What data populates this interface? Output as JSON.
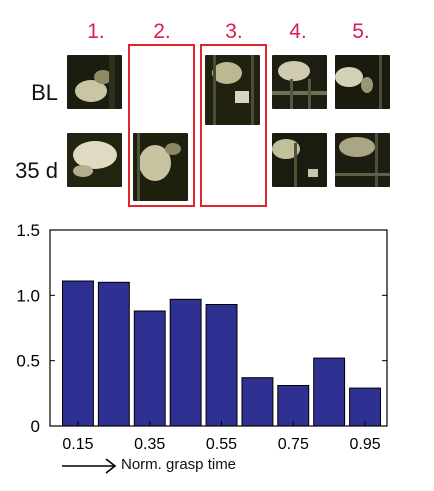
{
  "figure": {
    "steps": [
      "1.",
      "2.",
      "3.",
      "4.",
      "5."
    ],
    "rows": [
      "BL",
      "35 d"
    ],
    "frames_present": {
      "BL": [
        true,
        false,
        true,
        true,
        true
      ],
      "35 d": [
        true,
        true,
        false,
        true,
        true
      ]
    },
    "highlighted_steps": [
      2,
      3
    ],
    "colors": {
      "step_label": "#d81f4f",
      "highlight": "#e0262c",
      "bar": "#2e3192"
    }
  },
  "chart_data": {
    "type": "bar",
    "x": [
      0.15,
      0.25,
      0.35,
      0.45,
      0.55,
      0.65,
      0.75,
      0.85,
      0.95
    ],
    "values": [
      1.11,
      1.1,
      0.88,
      0.97,
      0.93,
      0.37,
      0.31,
      0.52,
      0.29
    ],
    "xticks": [
      "0.15",
      "0.35",
      "0.55",
      "0.75",
      "0.95"
    ],
    "yticks": [
      "0",
      "0.5",
      "1.0",
      "1.5"
    ],
    "ylim": [
      0,
      1.5
    ],
    "xlabel": "Norm. grasp time",
    "ylabel": "",
    "title": "",
    "grid": false
  }
}
